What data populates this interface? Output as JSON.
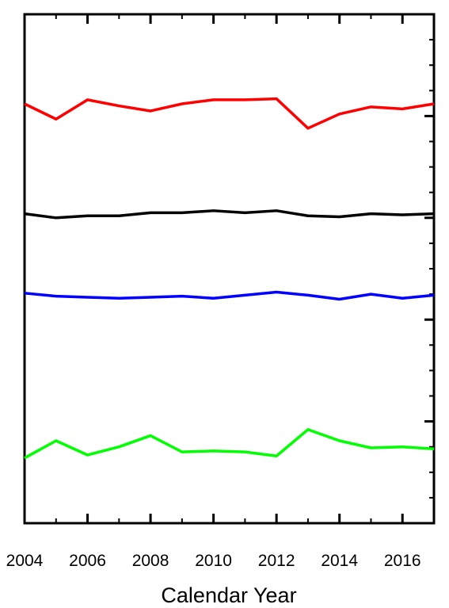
{
  "chart_data": {
    "type": "line",
    "x_label": "Calendar Year",
    "x": [
      2004,
      2005,
      2006,
      2007,
      2008,
      2009,
      2010,
      2011,
      2012,
      2013,
      2014,
      2015,
      2016,
      2017
    ],
    "series": [
      {
        "color": "#ff0000",
        "values": [
          4.12,
          3.97,
          4.16,
          4.1,
          4.05,
          4.12,
          4.16,
          4.16,
          4.17,
          3.88,
          4.02,
          4.09,
          4.07,
          4.12
        ]
      },
      {
        "color": "#000000",
        "values": [
          3.04,
          3.0,
          3.02,
          3.02,
          3.05,
          3.05,
          3.07,
          3.05,
          3.07,
          3.02,
          3.01,
          3.04,
          3.03,
          3.04
        ]
      },
      {
        "color": "#0000ff",
        "values": [
          2.26,
          2.23,
          2.22,
          2.21,
          2.22,
          2.23,
          2.21,
          2.24,
          2.27,
          2.24,
          2.2,
          2.25,
          2.21,
          2.24
        ]
      },
      {
        "color": "#00ff00",
        "values": [
          0.64,
          0.81,
          0.67,
          0.75,
          0.86,
          0.7,
          0.71,
          0.7,
          0.66,
          0.92,
          0.81,
          0.74,
          0.75,
          0.73
        ]
      }
    ],
    "xlim": [
      2004,
      2017
    ],
    "xticks": [
      2004,
      2006,
      2008,
      2010,
      2012,
      2014,
      2016
    ],
    "xminorticks": [
      2005,
      2007,
      2009,
      2011,
      2013,
      2015,
      2017
    ],
    "ylim": [
      0,
      5
    ],
    "yticks": [
      1,
      2,
      3,
      4
    ],
    "yminorticks": [
      0.25,
      0.5,
      0.75,
      1.25,
      1.5,
      1.75,
      2.25,
      2.5,
      2.75,
      3.25,
      3.5,
      3.75,
      4.25,
      4.5,
      4.75
    ]
  }
}
